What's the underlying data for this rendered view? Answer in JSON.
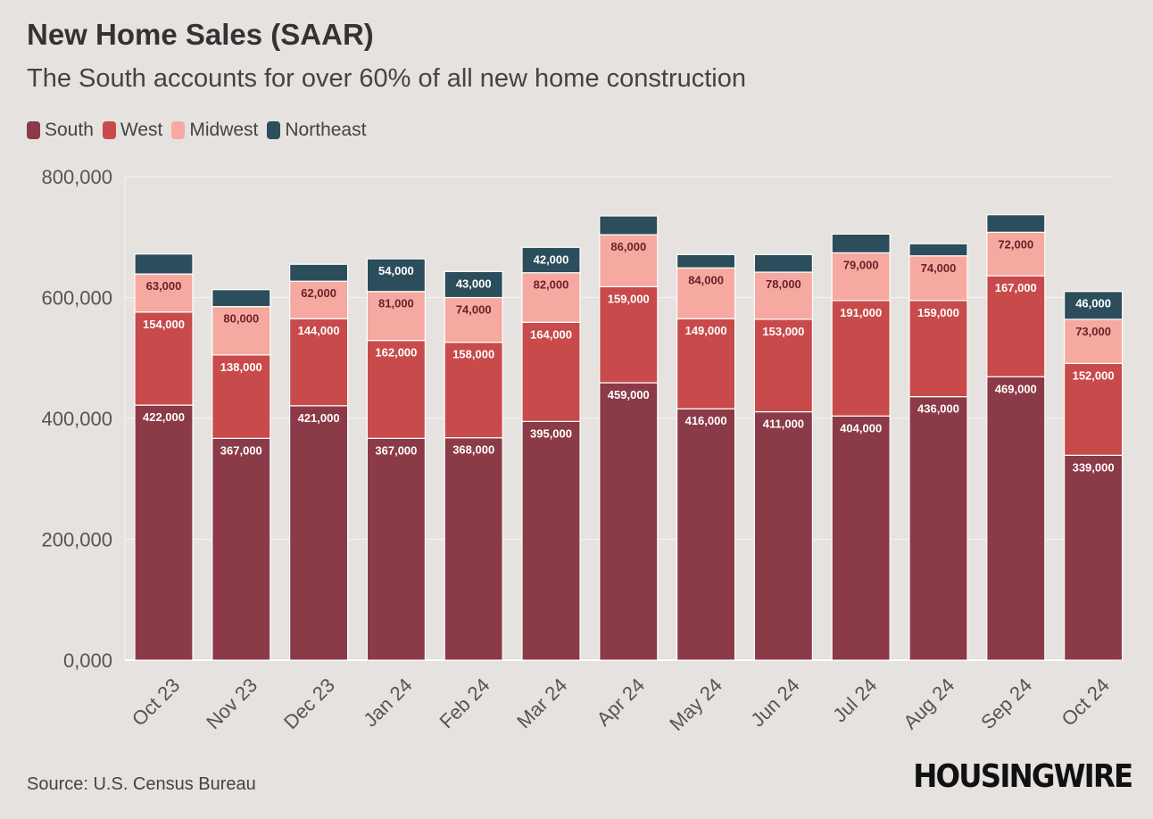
{
  "header": {
    "title": "New Home Sales (SAAR)",
    "subtitle": "The South accounts for over 60% of all new home construction"
  },
  "legend": [
    {
      "label": "South",
      "color": "#8b3a47"
    },
    {
      "label": "West",
      "color": "#c84a4a"
    },
    {
      "label": "Midwest",
      "color": "#f6a9a0"
    },
    {
      "label": "Northeast",
      "color": "#2c4d5b"
    }
  ],
  "footer": {
    "source": "Source: U.S. Census Bureau",
    "brand": "HOUSINGWIRE"
  },
  "chart_data": {
    "type": "bar",
    "stacked": true,
    "title": "New Home Sales (SAAR)",
    "subtitle": "The South accounts for over 60% of all new home construction",
    "xlabel": "",
    "ylabel": "",
    "ylim": [
      0,
      800000
    ],
    "yticks": [
      0,
      200000,
      400000,
      600000,
      800000
    ],
    "ytick_labels": [
      "0,000",
      "200,000",
      "400,000",
      "600,000",
      "800,000"
    ],
    "grid": true,
    "legend_position": "top-left",
    "categories": [
      "Oct 23",
      "Nov 23",
      "Dec 23",
      "Jan 24",
      "Feb 24",
      "Mar 24",
      "Apr 24",
      "May 24",
      "Jun 24",
      "Jul 24",
      "Aug 24",
      "Sep 24",
      "Oct 24"
    ],
    "series": [
      {
        "name": "South",
        "color": "#8b3a47",
        "values": [
          422000,
          367000,
          421000,
          367000,
          368000,
          395000,
          459000,
          416000,
          411000,
          404000,
          436000,
          469000,
          339000
        ],
        "labels": [
          "422,000",
          "367,000",
          "421,000",
          "367,000",
          "368,000",
          "395,000",
          "459,000",
          "416,000",
          "411,000",
          "404,000",
          "436,000",
          "469,000",
          "339,000"
        ]
      },
      {
        "name": "West",
        "color": "#c84a4a",
        "values": [
          154000,
          138000,
          144000,
          162000,
          158000,
          164000,
          159000,
          149000,
          153000,
          191000,
          159000,
          167000,
          152000
        ],
        "labels": [
          "154,000",
          "138,000",
          "144,000",
          "162,000",
          "158,000",
          "164,000",
          "159,000",
          "149,000",
          "153,000",
          "191,000",
          "159,000",
          "167,000",
          "152,000"
        ]
      },
      {
        "name": "Midwest",
        "color": "#f6a9a0",
        "values": [
          63000,
          80000,
          62000,
          81000,
          74000,
          82000,
          86000,
          84000,
          78000,
          79000,
          74000,
          72000,
          73000
        ],
        "labels": [
          "63,000",
          "80,000",
          "62,000",
          "81,000",
          "74,000",
          "82,000",
          "86,000",
          "84,000",
          "78,000",
          "79,000",
          "74,000",
          "72,000",
          "73,000"
        ]
      },
      {
        "name": "Northeast",
        "color": "#2c4d5b",
        "values": [
          33000,
          28000,
          28000,
          54000,
          43000,
          42000,
          31000,
          22000,
          29000,
          31000,
          20000,
          29000,
          46000
        ],
        "labels": [
          "",
          "",
          "",
          "54,000",
          "43,000",
          "42,000",
          "",
          "",
          "",
          "",
          "",
          "",
          "46,000"
        ]
      }
    ]
  }
}
